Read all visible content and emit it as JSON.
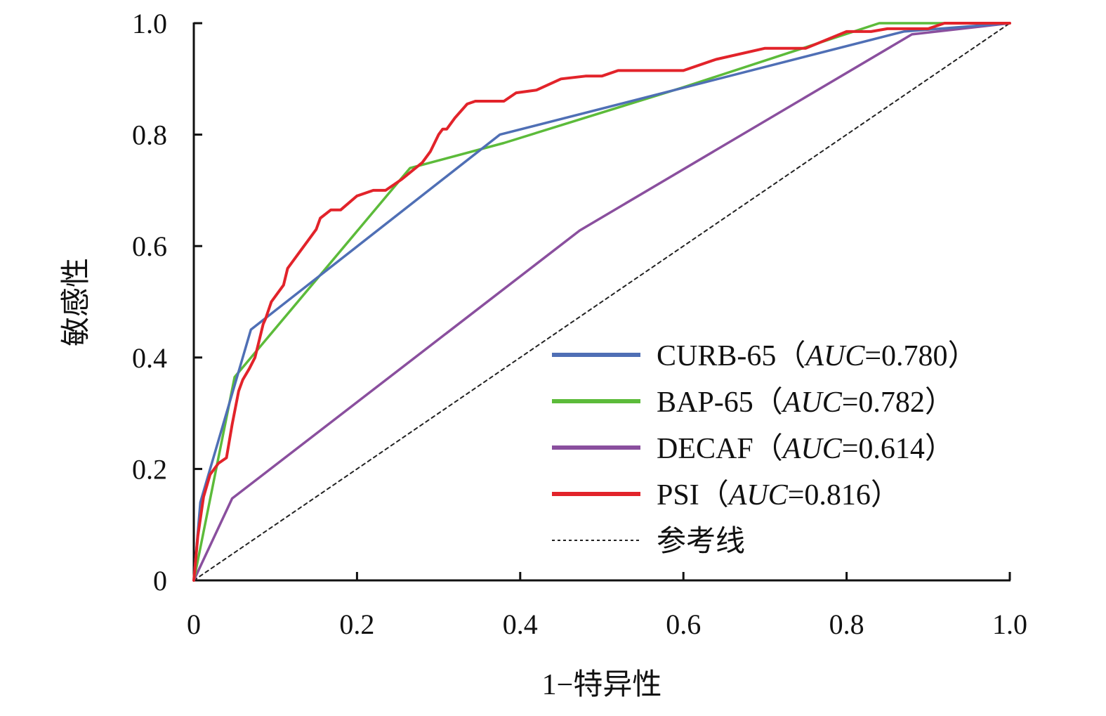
{
  "chart_data": {
    "type": "line",
    "xlabel": "1−特异性",
    "ylabel": "敏感性",
    "xlim": [
      0,
      1.0
    ],
    "ylim": [
      0,
      1.0
    ],
    "x_ticks": [
      {
        "value": 0,
        "label": "0"
      },
      {
        "value": 0.2,
        "label": "0.2"
      },
      {
        "value": 0.4,
        "label": "0.4"
      },
      {
        "value": 0.6,
        "label": "0.6"
      },
      {
        "value": 0.8,
        "label": "0.8"
      },
      {
        "value": 1.0,
        "label": "1.0"
      }
    ],
    "y_ticks": [
      {
        "value": 0,
        "label": "0"
      },
      {
        "value": 0.2,
        "label": "0.2"
      },
      {
        "value": 0.4,
        "label": "0.4"
      },
      {
        "value": 0.6,
        "label": "0.6"
      },
      {
        "value": 0.8,
        "label": "0.8"
      },
      {
        "value": 1.0,
        "label": "1.0"
      }
    ],
    "grid": false,
    "legend_position": "bottom-right",
    "series": [
      {
        "name": "CURB-65",
        "auc_label": "AUC",
        "auc_value": "=0.780",
        "color": "#4f6fb5",
        "style": "solid",
        "x": [
          0,
          0.008,
          0.07,
          0.375,
          0.87,
          1.0
        ],
        "y": [
          0,
          0.14,
          0.45,
          0.8,
          0.985,
          1.0
        ]
      },
      {
        "name": "BAP-65",
        "auc_label": "AUC",
        "auc_value": "=0.782",
        "color": "#5cbb3a",
        "style": "solid",
        "x": [
          0,
          0.05,
          0.265,
          0.38,
          0.6,
          0.84,
          1.0
        ],
        "y": [
          0,
          0.365,
          0.74,
          0.785,
          0.885,
          1.0,
          1.0
        ]
      },
      {
        "name": "DECAF",
        "auc_label": "AUC",
        "auc_value": "=0.614",
        "color": "#8a4f9e",
        "style": "solid",
        "x": [
          0,
          0.047,
          0.473,
          0.88,
          1.0
        ],
        "y": [
          0,
          0.147,
          0.628,
          0.98,
          1.0
        ]
      },
      {
        "name": "PSI",
        "auc_label": "AUC",
        "auc_value": "=0.816",
        "color": "#e2232a",
        "style": "solid",
        "x": [
          0,
          0.005,
          0.012,
          0.02,
          0.025,
          0.03,
          0.04,
          0.047,
          0.055,
          0.06,
          0.068,
          0.075,
          0.08,
          0.085,
          0.088,
          0.095,
          0.1,
          0.11,
          0.115,
          0.12,
          0.13,
          0.14,
          0.15,
          0.155,
          0.168,
          0.18,
          0.2,
          0.22,
          0.235,
          0.245,
          0.255,
          0.28,
          0.29,
          0.3,
          0.305,
          0.31,
          0.32,
          0.335,
          0.345,
          0.38,
          0.395,
          0.42,
          0.45,
          0.48,
          0.5,
          0.52,
          0.56,
          0.58,
          0.6,
          0.64,
          0.7,
          0.75,
          0.8,
          0.83,
          0.85,
          0.87,
          0.9,
          0.92,
          1.0
        ],
        "y": [
          0,
          0.08,
          0.15,
          0.19,
          0.2,
          0.21,
          0.22,
          0.28,
          0.34,
          0.36,
          0.38,
          0.4,
          0.43,
          0.46,
          0.47,
          0.5,
          0.51,
          0.53,
          0.56,
          0.57,
          0.59,
          0.61,
          0.63,
          0.65,
          0.665,
          0.665,
          0.69,
          0.7,
          0.7,
          0.71,
          0.72,
          0.75,
          0.77,
          0.8,
          0.81,
          0.81,
          0.83,
          0.855,
          0.86,
          0.86,
          0.875,
          0.88,
          0.9,
          0.905,
          0.905,
          0.915,
          0.915,
          0.915,
          0.915,
          0.935,
          0.955,
          0.955,
          0.985,
          0.985,
          0.99,
          0.99,
          0.99,
          1.0,
          1.0
        ]
      },
      {
        "name": "参考线",
        "color": "#222222",
        "style": "dashed",
        "x": [
          0,
          1.0
        ],
        "y": [
          0,
          1.0
        ]
      }
    ]
  }
}
